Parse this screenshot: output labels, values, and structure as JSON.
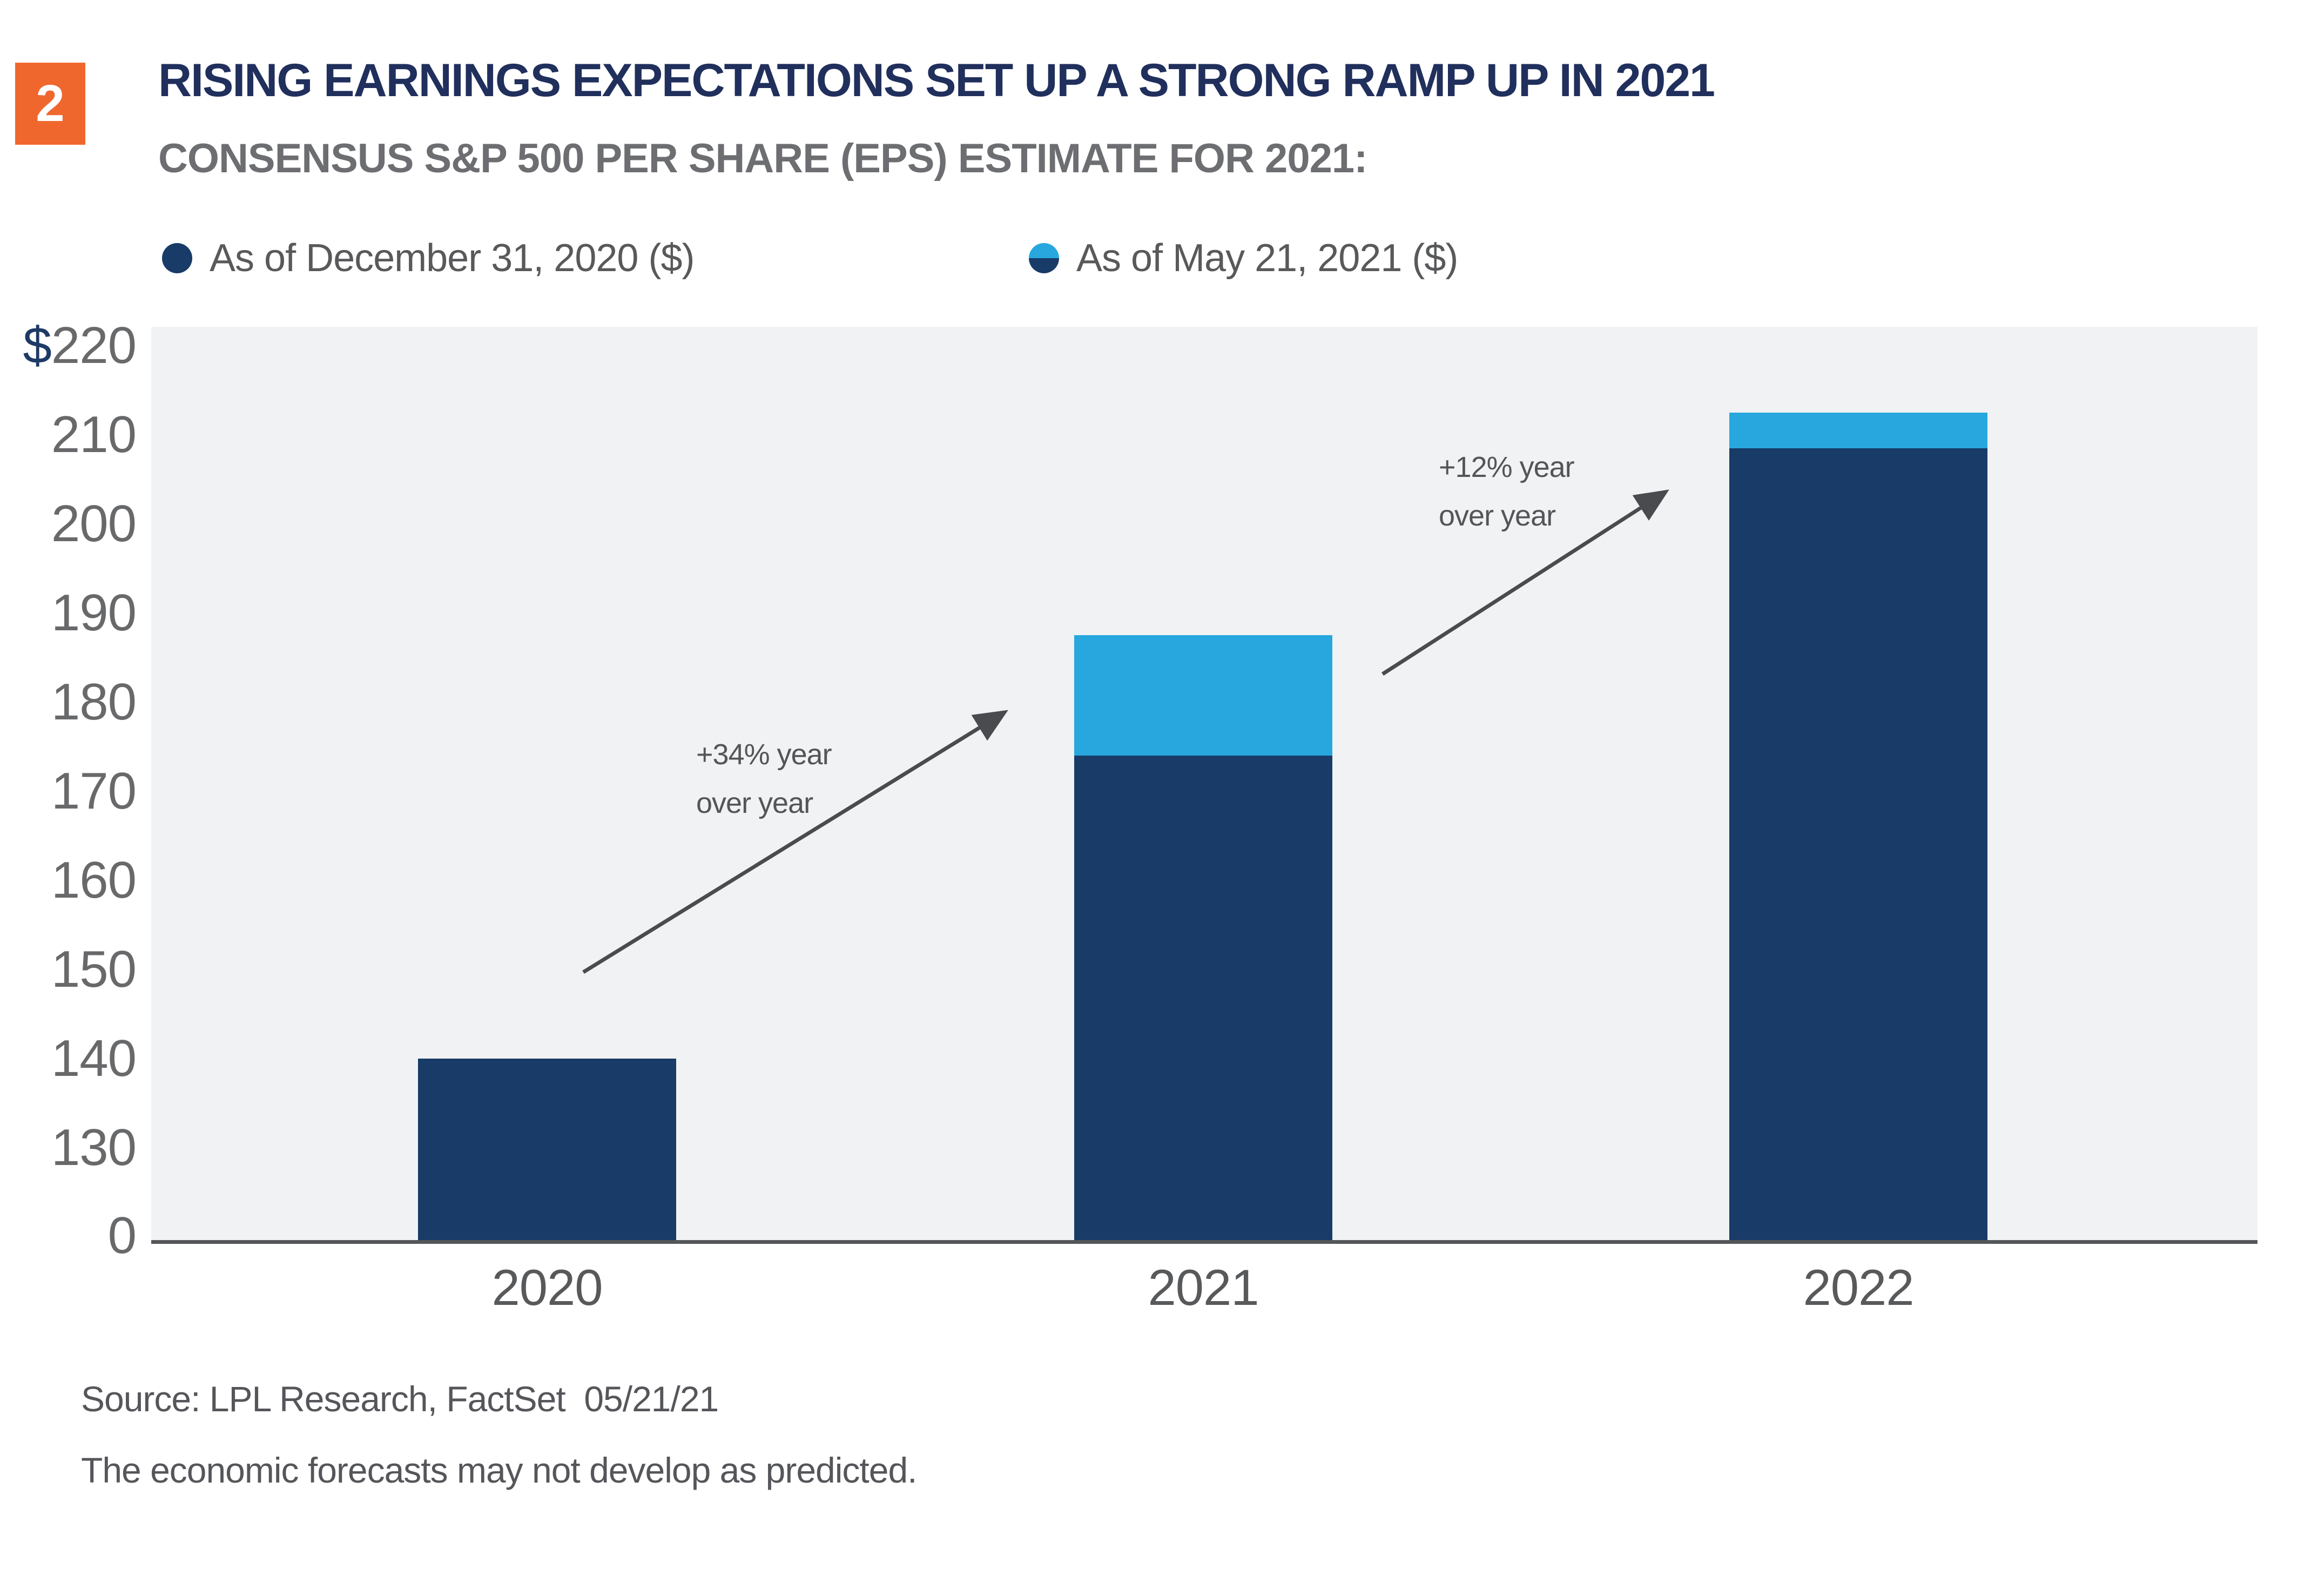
{
  "page": {
    "background": "#FFFFFF"
  },
  "badge": {
    "number": "2",
    "background": "#F0672E",
    "text_color": "#FFFFFF"
  },
  "header": {
    "title": "RISING EARNINGS EXPECTATIONS SET UP A STRONG RAMP UP IN 2021",
    "title_color": "#202F5C",
    "subtitle": "CONSENSUS S&P 500 PER SHARE (EPS) ESTIMATE FOR 2021:",
    "subtitle_color": "#6D6E71"
  },
  "legend": {
    "text_color": "#58595B",
    "items": [
      {
        "label": "As of December 31, 2020 ($)",
        "marker": "solid-circle",
        "color": "#183B67"
      },
      {
        "label": "As of May 21, 2021 ($)",
        "marker": "half-circle",
        "color_top": "#27A7DE",
        "color_bottom": "#183B67"
      }
    ]
  },
  "chart_data": {
    "type": "bar",
    "stacked": true,
    "categories": [
      "2020",
      "2021",
      "2022"
    ],
    "series": [
      {
        "name": "As of December 31, 2020 ($)",
        "color": "#183B67",
        "values": [
          140,
          174,
          208.5
        ]
      },
      {
        "name": "As of May 21, 2021 ($)",
        "color": "#27A7DE",
        "values": [
          null,
          187.5,
          212.5
        ]
      }
    ],
    "yaxis": {
      "tick_labels": [
        "$220",
        "210",
        "200",
        "190",
        "180",
        "170",
        "160",
        "150",
        "140",
        "130",
        "0"
      ],
      "broken_axis": true,
      "top_value": 220,
      "linear_down_to": 130,
      "tick_color": "#68696B",
      "dollar_sign_color": "#1E3A66"
    },
    "xaxis": {
      "tick_color": "#58595B"
    },
    "grid": false,
    "plot_background": "#F1F2F3",
    "axis_line_color": "#55565A",
    "annotations": [
      {
        "lines": [
          "+34% year",
          "over year"
        ]
      },
      {
        "lines": [
          "+12% year",
          "over year"
        ]
      }
    ],
    "annotation_color": "#545559",
    "arrow_color": "#4A4B4F"
  },
  "source": {
    "line1": "Source: LPL Research, FactSet  05/21/21",
    "line2": "The economic forecasts may not develop as predicted.",
    "color": "#55565A"
  }
}
